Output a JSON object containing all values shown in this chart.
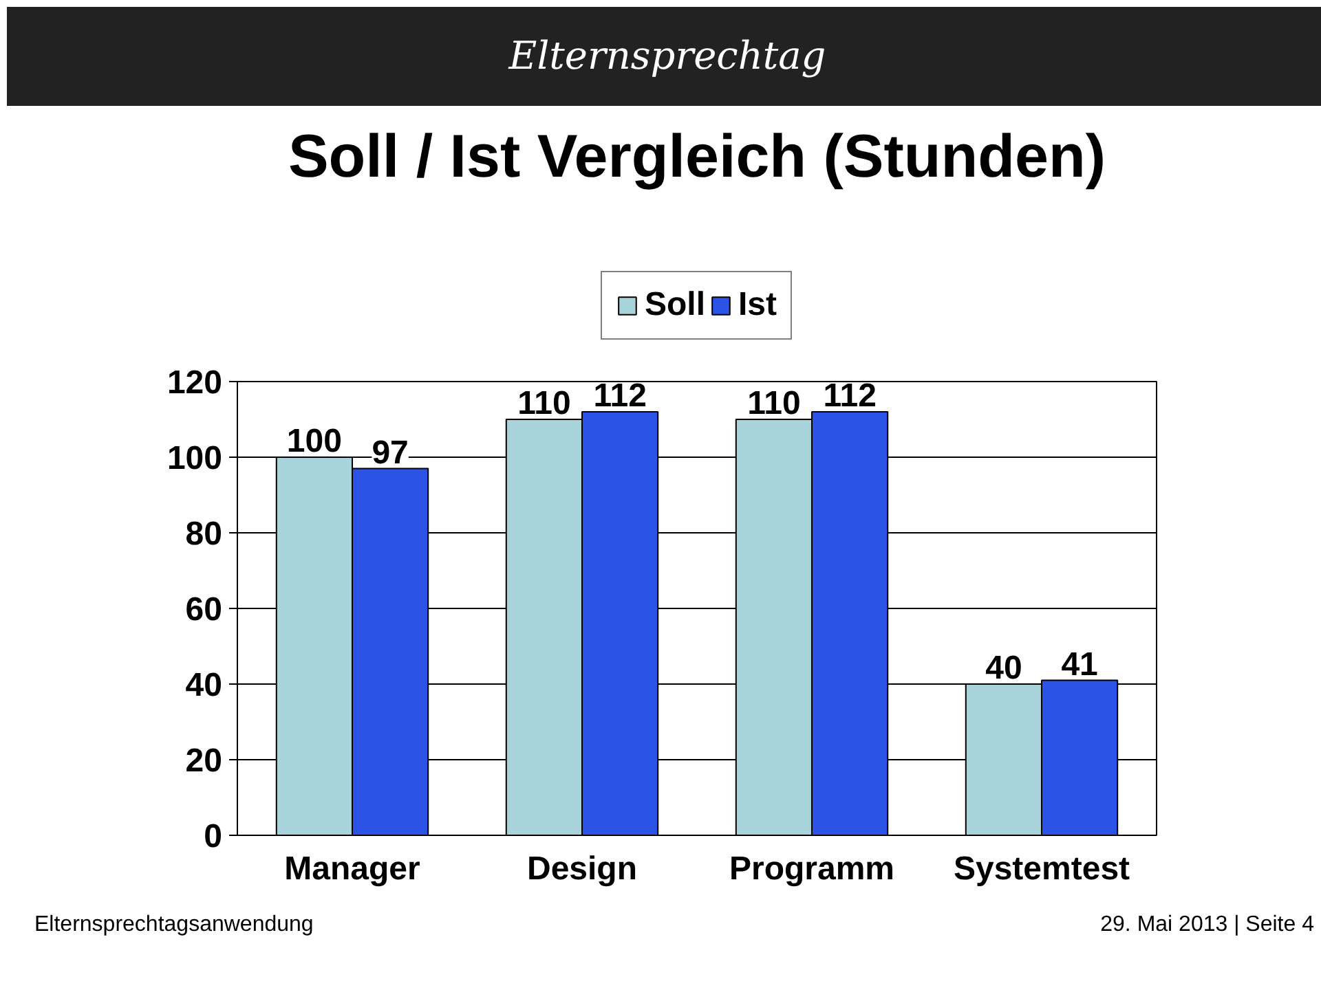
{
  "chart_data": {
    "type": "bar",
    "title": "Soll / Ist Vergleich (Stunden)",
    "categories": [
      "Manager",
      "Design",
      "Programm",
      "Systemtest"
    ],
    "series": [
      {
        "name": "Soll",
        "color": "#a9d3da",
        "values": [
          100,
          110,
          110,
          40
        ]
      },
      {
        "name": "Ist",
        "color": "#2b54e6",
        "values": [
          97,
          112,
          112,
          41
        ]
      }
    ],
    "ylim": [
      0,
      120
    ],
    "yticks": [
      0,
      20,
      40,
      60,
      80,
      100,
      120
    ],
    "grid": "y",
    "legend": "top",
    "data_labels": true,
    "annotations": [
      "Elternsprechtag",
      "Elternsprechtagsanwendung",
      "29. Mai 2013 | Seite 4"
    ]
  }
}
